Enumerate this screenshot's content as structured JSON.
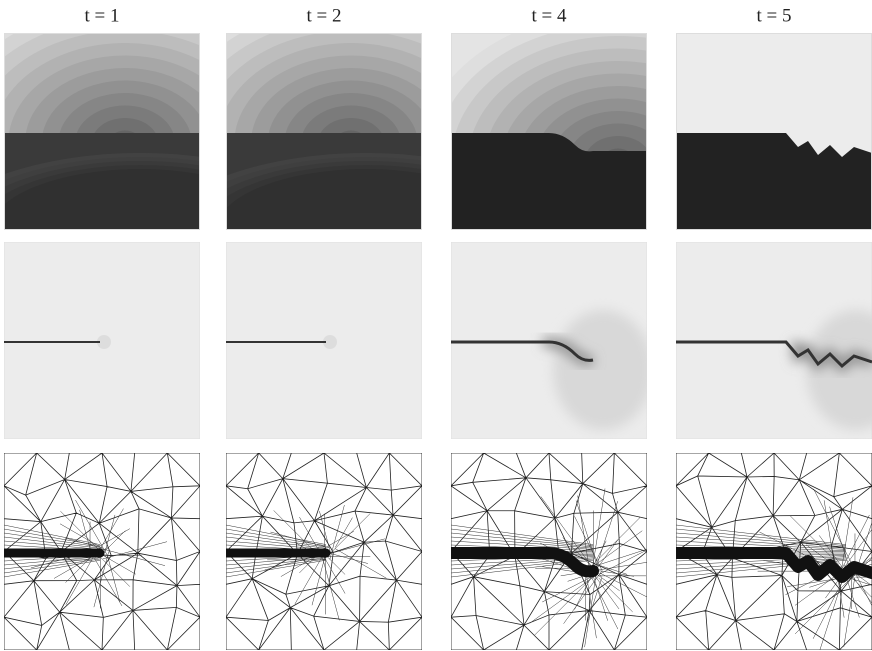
{
  "columns": [
    {
      "label": "t = 1"
    },
    {
      "label": "t = 2"
    },
    {
      "label": "t = 4"
    },
    {
      "label": "t = 5"
    }
  ]
}
